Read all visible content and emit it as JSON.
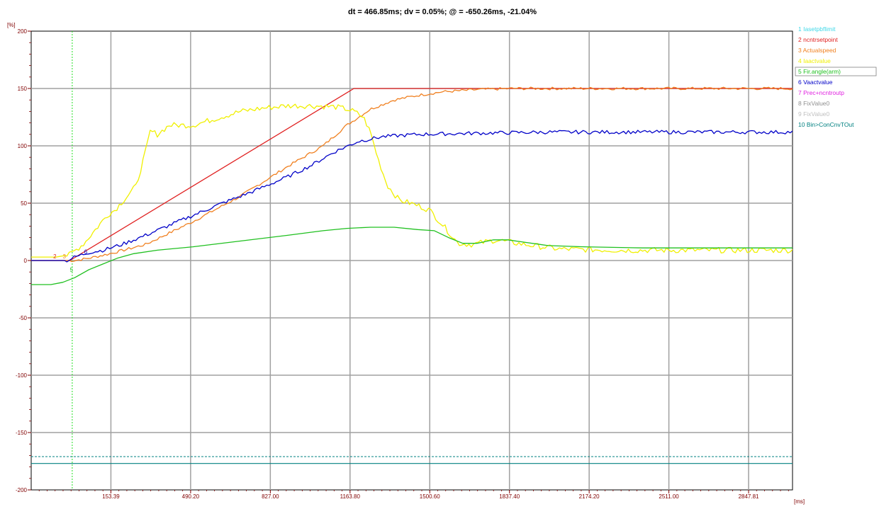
{
  "title": "dt = 466.85ms; dv = 0.05%; @ = -650.26ms, -21.04%",
  "chart_data": {
    "type": "line",
    "y_unit": "[%]",
    "x_unit": "[ms]",
    "xlim": [
      -183.4,
      3033.4
    ],
    "ylim": [
      -200,
      200
    ],
    "x_ticks": [
      {
        "value": 153.39,
        "label": "153.39"
      },
      {
        "value": 490.2,
        "label": "490.20"
      },
      {
        "value": 827.0,
        "label": "827.00"
      },
      {
        "value": 1163.8,
        "label": "1163.80"
      },
      {
        "value": 1500.6,
        "label": "1500.60"
      },
      {
        "value": 1837.4,
        "label": "1837.40"
      },
      {
        "value": 2174.2,
        "label": "2174.20"
      },
      {
        "value": 2511.0,
        "label": "2511.00"
      },
      {
        "value": 2847.81,
        "label": "2847.81"
      }
    ],
    "y_ticks": [
      {
        "value": 200,
        "label": "200"
      },
      {
        "value": 150,
        "label": "150"
      },
      {
        "value": 100,
        "label": "100"
      },
      {
        "value": 50,
        "label": "50"
      },
      {
        "value": 0,
        "label": "0"
      },
      {
        "value": -50,
        "label": "-50"
      },
      {
        "value": -100,
        "label": "-100"
      },
      {
        "value": -150,
        "label": "-150"
      },
      {
        "value": -200,
        "label": "-200"
      }
    ],
    "cursor_x": -10,
    "grid": true,
    "legend_position": "right",
    "legend": [
      {
        "label": "1  Iasetpbflimit",
        "color": "#40d8e8"
      },
      {
        "label": "2  ncntrsetpoint",
        "color": "#e02020"
      },
      {
        "label": "3  Actualspeed",
        "color": "#f08020"
      },
      {
        "label": "4  Iaactvalue",
        "color": "#f0f000"
      },
      {
        "label": "5  Fir.angle(arm)",
        "color": "#20c020",
        "boxed": true
      },
      {
        "label": "6  Vaactvalue",
        "color": "#0000c8"
      },
      {
        "label": "7  Prec+ncntroutp",
        "color": "#e020e0"
      },
      {
        "label": "8  FixValue0",
        "color": "#909090"
      },
      {
        "label": "9  FixValue0",
        "color": "#c0c0c0"
      },
      {
        "label": "10  Bin>ConCnvTOut",
        "color": "#008080"
      }
    ],
    "series": [
      {
        "id": "setpoint",
        "color": "#e02020",
        "width": 1.3,
        "points": [
          [
            -183.4,
            0
          ],
          [
            -40,
            0
          ],
          [
            -20,
            0
          ],
          [
            1180,
            150
          ],
          [
            3033.4,
            150
          ]
        ]
      },
      {
        "id": "speed",
        "color": "#f08020",
        "width": 1.3,
        "noise": 1.2,
        "points": [
          [
            -183.4,
            0
          ],
          [
            0,
            0
          ],
          [
            60,
            2
          ],
          [
            150,
            6
          ],
          [
            300,
            14
          ],
          [
            500,
            34
          ],
          [
            700,
            56
          ],
          [
            900,
            82
          ],
          [
            1050,
            100
          ],
          [
            1150,
            118
          ],
          [
            1250,
            132
          ],
          [
            1350,
            140
          ],
          [
            1450,
            144
          ],
          [
            1550,
            147
          ],
          [
            1700,
            149
          ],
          [
            1850,
            150
          ],
          [
            3033.4,
            150
          ]
        ]
      },
      {
        "id": "current",
        "color": "#f0f000",
        "width": 1.3,
        "noise": 2.5,
        "points": [
          [
            -183.4,
            3
          ],
          [
            -80,
            3
          ],
          [
            -20,
            5
          ],
          [
            40,
            15
          ],
          [
            100,
            30
          ],
          [
            140,
            40
          ],
          [
            170,
            44
          ],
          [
            230,
            58
          ],
          [
            260,
            65
          ],
          [
            300,
            95
          ],
          [
            320,
            113
          ],
          [
            350,
            110
          ],
          [
            400,
            118
          ],
          [
            500,
            118
          ],
          [
            600,
            124
          ],
          [
            700,
            130
          ],
          [
            800,
            133
          ],
          [
            900,
            135
          ],
          [
            1000,
            135
          ],
          [
            1100,
            134
          ],
          [
            1150,
            132
          ],
          [
            1180,
            130
          ],
          [
            1220,
            125
          ],
          [
            1250,
            112
          ],
          [
            1280,
            90
          ],
          [
            1320,
            66
          ],
          [
            1370,
            53
          ],
          [
            1450,
            48
          ],
          [
            1500,
            44
          ],
          [
            1560,
            30
          ],
          [
            1620,
            15
          ],
          [
            1680,
            14
          ],
          [
            1780,
            18
          ],
          [
            1900,
            14
          ],
          [
            2050,
            10
          ],
          [
            2300,
            9
          ],
          [
            2600,
            9
          ],
          [
            3033.4,
            9
          ]
        ]
      },
      {
        "id": "angle",
        "color": "#20c020",
        "width": 1.3,
        "points": [
          [
            -183.4,
            -21
          ],
          [
            -100,
            -21
          ],
          [
            -50,
            -19
          ],
          [
            0,
            -15
          ],
          [
            60,
            -8
          ],
          [
            120,
            -3
          ],
          [
            180,
            2
          ],
          [
            250,
            6
          ],
          [
            350,
            9
          ],
          [
            500,
            12
          ],
          [
            700,
            17
          ],
          [
            900,
            22
          ],
          [
            1050,
            26
          ],
          [
            1150,
            28
          ],
          [
            1250,
            29
          ],
          [
            1350,
            29
          ],
          [
            1450,
            27
          ],
          [
            1520,
            26
          ],
          [
            1580,
            20
          ],
          [
            1640,
            15
          ],
          [
            1700,
            15
          ],
          [
            1770,
            18
          ],
          [
            1830,
            18
          ],
          [
            1900,
            16
          ],
          [
            2000,
            13
          ],
          [
            2150,
            12
          ],
          [
            2400,
            11
          ],
          [
            2700,
            11
          ],
          [
            3033.4,
            11
          ]
        ]
      },
      {
        "id": "voltage",
        "color": "#0000c8",
        "width": 1.3,
        "noise": 1.6,
        "points": [
          [
            -183.4,
            0
          ],
          [
            -30,
            0
          ],
          [
            0,
            3
          ],
          [
            60,
            7
          ],
          [
            120,
            9
          ],
          [
            200,
            14
          ],
          [
            300,
            22
          ],
          [
            450,
            35
          ],
          [
            600,
            48
          ],
          [
            750,
            60
          ],
          [
            900,
            73
          ],
          [
            1000,
            83
          ],
          [
            1100,
            95
          ],
          [
            1200,
            104
          ],
          [
            1300,
            108
          ],
          [
            1450,
            110
          ],
          [
            1700,
            111
          ],
          [
            2000,
            112
          ],
          [
            2500,
            112
          ],
          [
            3033.4,
            112
          ]
        ]
      },
      {
        "id": "teal1",
        "color": "#008080",
        "width": 1.1,
        "dashed": true,
        "points": [
          [
            -183.4,
            -171
          ],
          [
            3033.4,
            -171
          ]
        ]
      },
      {
        "id": "teal2",
        "color": "#008080",
        "width": 1.1,
        "points": [
          [
            -183.4,
            -177
          ],
          [
            3033.4,
            -177
          ]
        ]
      }
    ],
    "markers": [
      {
        "text": "2",
        "x": -90,
        "y": 2,
        "color": "#e02020"
      },
      {
        "text": "3",
        "x": -50,
        "y": 2,
        "color": "#f08020"
      },
      {
        "text": "6",
        "x": 40,
        "y": 6,
        "color": "#0000c8"
      },
      {
        "text": "5",
        "x": -20,
        "y": -10,
        "color": "#20c020"
      }
    ]
  }
}
